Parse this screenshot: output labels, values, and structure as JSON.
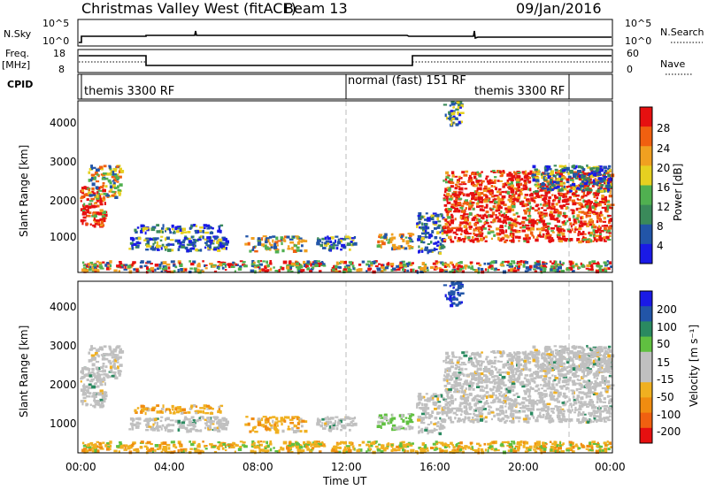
{
  "header": {
    "title": "Christmas Valley West (fitACF)",
    "beam": "Beam 13",
    "date": "09/Jan/2016"
  },
  "sky_panel": {
    "left_label": "N.Sky",
    "left_ticks": [
      "10^5",
      "10^0"
    ],
    "right_ticks": [
      "10^5",
      "10^0"
    ],
    "right_label": "N.Search"
  },
  "freq_panel": {
    "left_label_1": "Freq.",
    "left_label_2": "[MHz]",
    "left_ticks": [
      "18",
      "8"
    ],
    "right_ticks": [
      "60",
      "0"
    ],
    "right_label": "Nave"
  },
  "cpid": {
    "label": "CPID",
    "segments": [
      "themis 3300 RF",
      "normal (fast) 151 RF",
      "themis 3300 RF"
    ]
  },
  "colors": {
    "power_scale": [
      "#1a1ae6",
      "#2255a8",
      "#3a8a5a",
      "#50b050",
      "#e6d020",
      "#f0a020",
      "#f06010",
      "#e61010"
    ],
    "velocity_scale": [
      "#e61010",
      "#f06010",
      "#f08c10",
      "#f0b020",
      "#c0c0c0",
      "#c0c0c0",
      "#60c040",
      "#2a8a60",
      "#2255a8",
      "#1a1ae6"
    ],
    "ground_scatter": "#c0c0c0"
  },
  "chart_data": [
    {
      "type": "heatmap",
      "name": "power",
      "xlabel": "",
      "ylabel": "Slant Range [km]",
      "x_ticks": [],
      "y_ticks": [
        "1000",
        "2000",
        "3000",
        "4000"
      ],
      "colorbar_label": "Power [dB]",
      "colorbar_ticks": [
        "4",
        "8",
        "12",
        "16",
        "20",
        "24",
        "28"
      ]
    },
    {
      "type": "heatmap",
      "name": "velocity",
      "xlabel": "Time UT",
      "ylabel": "Slant Range [km]",
      "x_ticks": [
        "00:00",
        "04:00",
        "08:00",
        "12:00",
        "16:00",
        "20:00",
        "00:00"
      ],
      "y_ticks": [
        "1000",
        "2000",
        "3000",
        "4000"
      ],
      "colorbar_label": "Velocity [m s⁻¹]",
      "colorbar_ticks": [
        "200",
        "100",
        "50",
        "15",
        "-15",
        "-50",
        "-100",
        "-200"
      ]
    }
  ]
}
